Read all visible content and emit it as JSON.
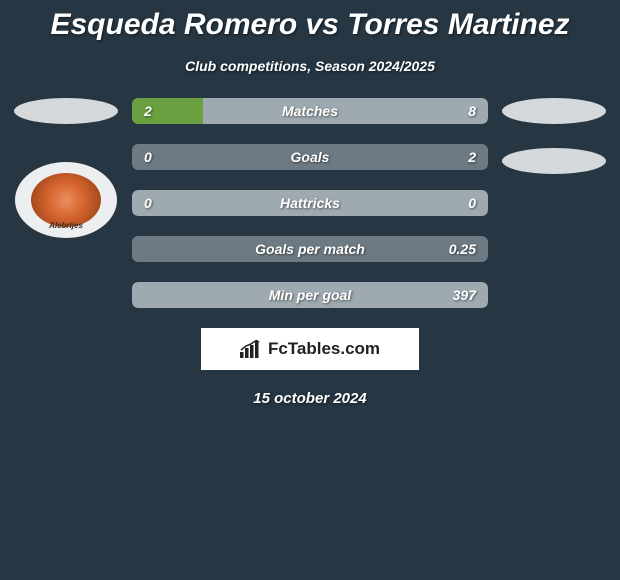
{
  "title": "Esqueda Romero vs Torres Martinez",
  "subtitle": "Club competitions, Season 2024/2025",
  "colors": {
    "background": "#263642",
    "bar_bg_light": "#9fa9b0",
    "bar_bg_dark": "#6e7a83",
    "bar_fill": "#6aa040",
    "text": "#ffffff",
    "badge_bg": "#d5d9dc"
  },
  "bars": [
    {
      "left": "2",
      "center": "Matches",
      "right": "8",
      "left_pct": 20,
      "right_pct": 0,
      "bg": "#9fa9b0"
    },
    {
      "left": "0",
      "center": "Goals",
      "right": "2",
      "left_pct": 0,
      "right_pct": 0,
      "bg": "#6e7a83"
    },
    {
      "left": "0",
      "center": "Hattricks",
      "right": "0",
      "left_pct": 0,
      "right_pct": 0,
      "bg": "#9fa9b0"
    },
    {
      "left": "",
      "center": "Goals per match",
      "right": "0.25",
      "left_pct": 0,
      "right_pct": 0,
      "bg": "#6e7a83"
    },
    {
      "left": "",
      "center": "Min per goal",
      "right": "397",
      "left_pct": 0,
      "right_pct": 0,
      "bg": "#9fa9b0"
    }
  ],
  "left_badge_label": "Alebrijes",
  "brand": "FcTables.com",
  "date": "15 october 2024"
}
